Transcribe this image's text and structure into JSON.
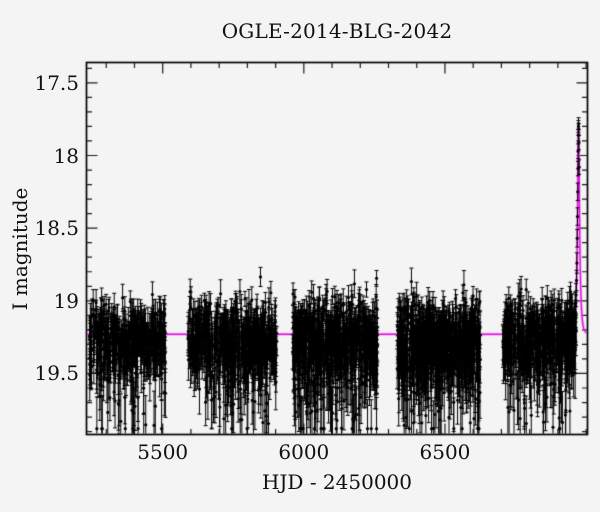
{
  "chart_data": {
    "type": "scatter",
    "title": "OGLE-2014-BLG-2042",
    "xlabel": "HJD - 2450000",
    "ylabel": "I magnitude",
    "xlim": [
      5230,
      7005
    ],
    "ylim_top_mag": 17.36,
    "ylim_bottom_mag": 19.92,
    "y_axis_inverted": true,
    "grid": false,
    "legend": false,
    "x_ticks": [
      {
        "value": 5500,
        "label": "5500"
      },
      {
        "value": 6000,
        "label": "6000"
      },
      {
        "value": 6500,
        "label": "6500"
      }
    ],
    "x_minor_step": 100,
    "y_ticks": [
      {
        "value": 17.5,
        "label": "17.5"
      },
      {
        "value": 18,
        "label": "18"
      },
      {
        "value": 18.5,
        "label": "18.5"
      },
      {
        "value": 19,
        "label": "19"
      },
      {
        "value": 19.5,
        "label": "19.5"
      }
    ],
    "y_minor_step": 0.1,
    "baseline_I_mag": 19.23,
    "peak_I_mag": 17.78,
    "model": {
      "type": "paczynski",
      "t0": 6973.2,
      "tE": 8.0,
      "u0": 0.27,
      "I0": 19.23
    },
    "seasons": [
      {
        "hjd_start": 5240,
        "hjd_end": 5510,
        "n": 420,
        "mean_mag": 19.27,
        "sigma": 0.12,
        "faint_frac": 0.09,
        "seed": 11
      },
      {
        "hjd_start": 5590,
        "hjd_end": 5905,
        "n": 520,
        "mean_mag": 19.27,
        "sigma": 0.13,
        "faint_frac": 0.1,
        "seed": 22
      },
      {
        "hjd_start": 5960,
        "hjd_end": 6262,
        "n": 640,
        "mean_mag": 19.28,
        "sigma": 0.145,
        "faint_frac": 0.11,
        "seed": 33
      },
      {
        "hjd_start": 6330,
        "hjd_end": 6625,
        "n": 640,
        "mean_mag": 19.28,
        "sigma": 0.145,
        "faint_frac": 0.11,
        "seed": 44
      },
      {
        "hjd_start": 6705,
        "hjd_end": 6965,
        "n": 500,
        "mean_mag": 19.26,
        "sigma": 0.13,
        "faint_frac": 0.1,
        "seed": 55
      }
    ],
    "event_points": [
      [
        6952.0,
        19.18,
        0.1
      ],
      [
        6955.0,
        19.16,
        0.09
      ],
      [
        6958.0,
        19.12,
        0.1
      ],
      [
        6960.5,
        19.09,
        0.09
      ],
      [
        6962.6,
        19.02,
        0.08
      ],
      [
        6964.5,
        18.96,
        0.08
      ],
      [
        6966.1,
        18.86,
        0.07
      ],
      [
        6967.4,
        18.74,
        0.07
      ],
      [
        6968.6,
        18.57,
        0.06
      ],
      [
        6969.6,
        18.42,
        0.06
      ],
      [
        6970.5,
        18.25,
        0.06
      ],
      [
        6971.2,
        18.09,
        0.05
      ],
      [
        6971.8,
        17.97,
        0.05
      ],
      [
        6972.4,
        17.86,
        0.04
      ],
      [
        6972.9,
        17.8,
        0.04
      ],
      [
        6973.3,
        17.78,
        0.04
      ],
      [
        6973.8,
        17.82,
        0.04
      ],
      [
        6974.4,
        17.91,
        0.05
      ],
      [
        6975.2,
        18.08,
        0.05
      ]
    ],
    "colors": {
      "background": "#f4f4f4",
      "frame": "#000000",
      "data_points": "#000000",
      "model_curve": "#e211e2"
    }
  }
}
